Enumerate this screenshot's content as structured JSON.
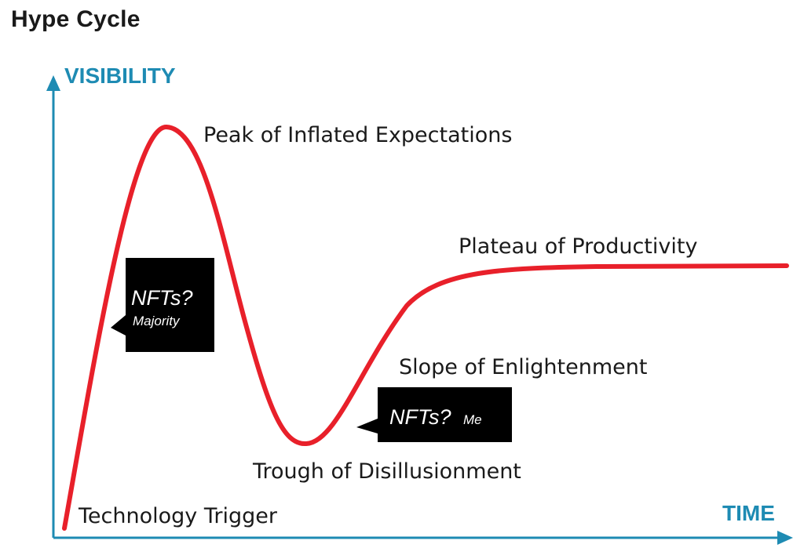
{
  "title": "Hype Cycle",
  "axes": {
    "y_label": "VISIBILITY",
    "x_label": "TIME",
    "color": "#1e8bb3"
  },
  "curve": {
    "color": "#e8202a"
  },
  "phases": {
    "technology_trigger": "Technology Trigger",
    "peak": "Peak of Inflated Expectations",
    "trough": "Trough of Disillusionment",
    "slope": "Slope of Enlightenment",
    "plateau": "Plateau of Productivity"
  },
  "callouts": {
    "majority": {
      "main": "NFTs?",
      "sub": "Majority"
    },
    "me": {
      "main": "NFTs?",
      "sub": "Me"
    },
    "color": "#000000"
  }
}
